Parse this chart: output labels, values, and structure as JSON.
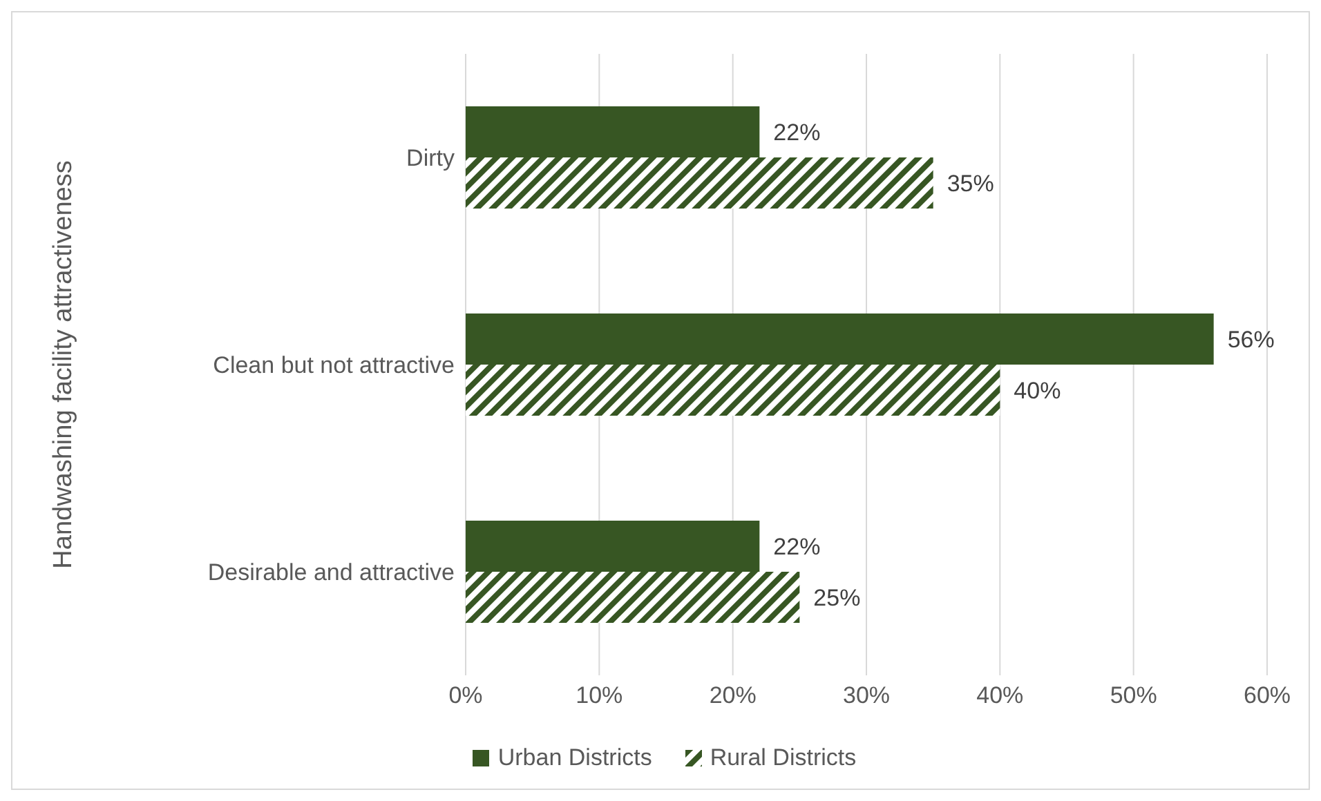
{
  "chart_data": {
    "type": "bar",
    "orientation": "horizontal",
    "ylabel": "Handwashing facility attractiveness",
    "categories": [
      "Dirty",
      "Clean but not attractive",
      "Desirable and attractive"
    ],
    "series": [
      {
        "name": "Urban Districts",
        "color": "#375623",
        "values": [
          22,
          56,
          22
        ],
        "value_labels": [
          "22%",
          "56%",
          "22%"
        ]
      },
      {
        "name": "Rural Districts",
        "color": "#375623",
        "values": [
          35,
          40,
          25
        ],
        "value_labels": [
          "35%",
          "40%",
          "25%"
        ]
      }
    ],
    "xlim": [
      0,
      60
    ],
    "xticks": [
      {
        "value": 0,
        "label": "0%"
      },
      {
        "value": 10,
        "label": "10%"
      },
      {
        "value": 20,
        "label": "20%"
      },
      {
        "value": 30,
        "label": "30%"
      },
      {
        "value": 40,
        "label": "40%"
      },
      {
        "value": 50,
        "label": "50%"
      },
      {
        "value": 60,
        "label": "60%"
      }
    ],
    "grid": "x",
    "legend": "bottom"
  }
}
